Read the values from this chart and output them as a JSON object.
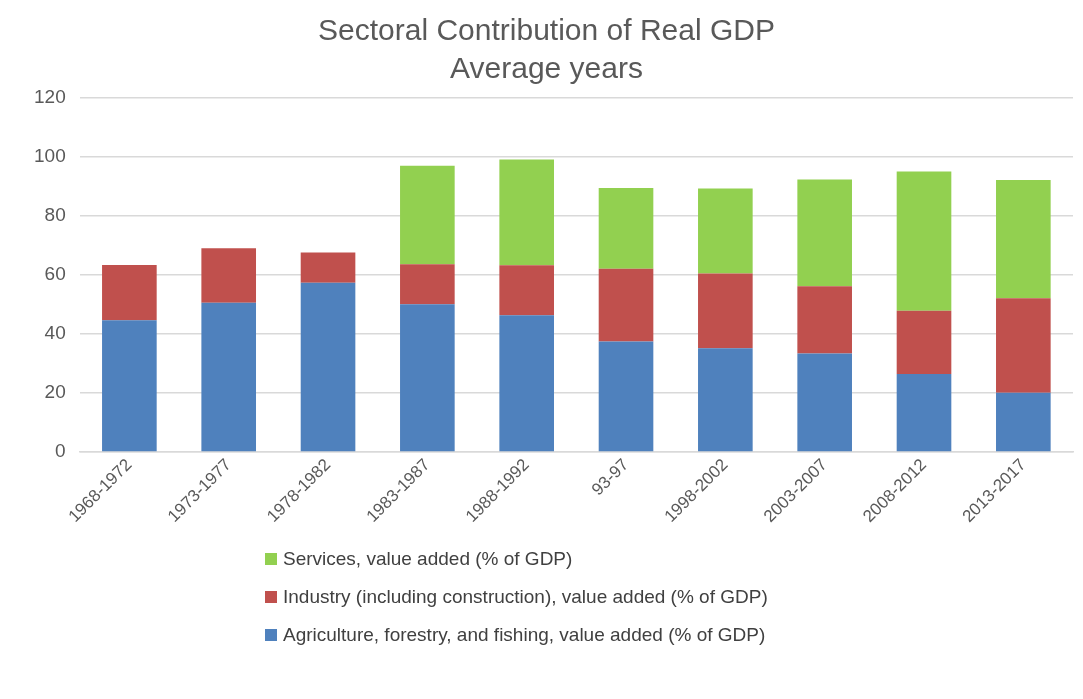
{
  "chart_data": {
    "type": "bar",
    "title": "Sectoral Contribution of Real GDP",
    "subtitle": "Average years",
    "categories": [
      "1968-1972",
      "1973-1977",
      "1978-1982",
      "1983-1987",
      "1988-1992",
      "93-97",
      "1998-2002",
      "2003-2007",
      "2008-2012",
      "2013-2017"
    ],
    "series": [
      {
        "name": "Agriculture, forestry, and fishing, value added (% of GDP)",
        "color": "#4f81bd",
        "values": [
          44.7,
          50.6,
          57.4,
          50.1,
          46.4,
          37.5,
          35.2,
          33.4,
          26.5,
          20.1
        ]
      },
      {
        "name": "Industry (including construction), value added (% of GDP)",
        "color": "#c0504d",
        "values": [
          18.7,
          18.5,
          10.2,
          13.6,
          16.9,
          24.6,
          25.3,
          22.8,
          21.4,
          32.0
        ]
      },
      {
        "name": "Services, value added (% of GDP)",
        "color": "#92d050",
        "values": [
          null,
          null,
          null,
          33.3,
          35.9,
          27.4,
          28.8,
          36.2,
          47.2,
          40.1
        ]
      }
    ],
    "stacked": true,
    "ylim": [
      0,
      120
    ],
    "yticks": [
      0,
      20,
      40,
      60,
      80,
      100,
      120
    ],
    "grid": "y",
    "legend": "bottom"
  }
}
